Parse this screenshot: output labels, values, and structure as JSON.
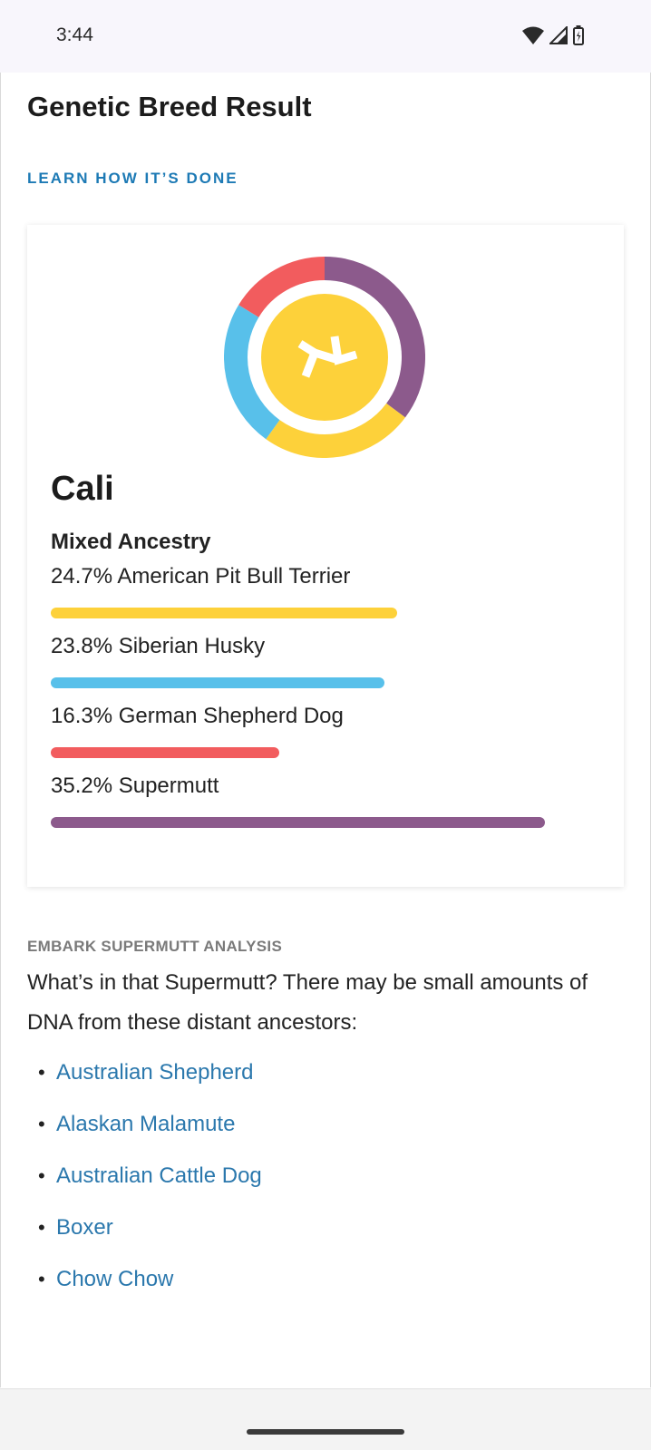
{
  "status_bar": {
    "time": "3:44"
  },
  "page": {
    "title": "Genetic Breed Result",
    "learn_link": "LEARN HOW IT’S DONE"
  },
  "card": {
    "dog_name": "Cali",
    "ancestry_label": "Mixed Ancestry",
    "breeds": [
      {
        "label": "24.7% American Pit Bull Terrier",
        "percent": 24.7,
        "color": "#fdd13a"
      },
      {
        "label": "23.8% Siberian Husky",
        "percent": 23.8,
        "color": "#58c0ea"
      },
      {
        "label": "16.3% German Shepherd Dog",
        "percent": 16.3,
        "color": "#f25c5e"
      },
      {
        "label": "35.2% Supermutt",
        "percent": 35.2,
        "color": "#8c5a8c"
      }
    ],
    "logo_icon": "embark-logo-icon"
  },
  "supermutt": {
    "heading": "EMBARK SUPERMUTT ANALYSIS",
    "body": "What’s in that Supermutt? There may be small amounts of DNA from these distant ancestors:",
    "ancestors": [
      "Australian Shepherd",
      "Alaskan Malamute",
      "Australian Cattle Dog",
      "Boxer",
      "Chow Chow"
    ]
  },
  "colors": {
    "link": "#2b78ad",
    "accent": "#1d7ab5"
  }
}
